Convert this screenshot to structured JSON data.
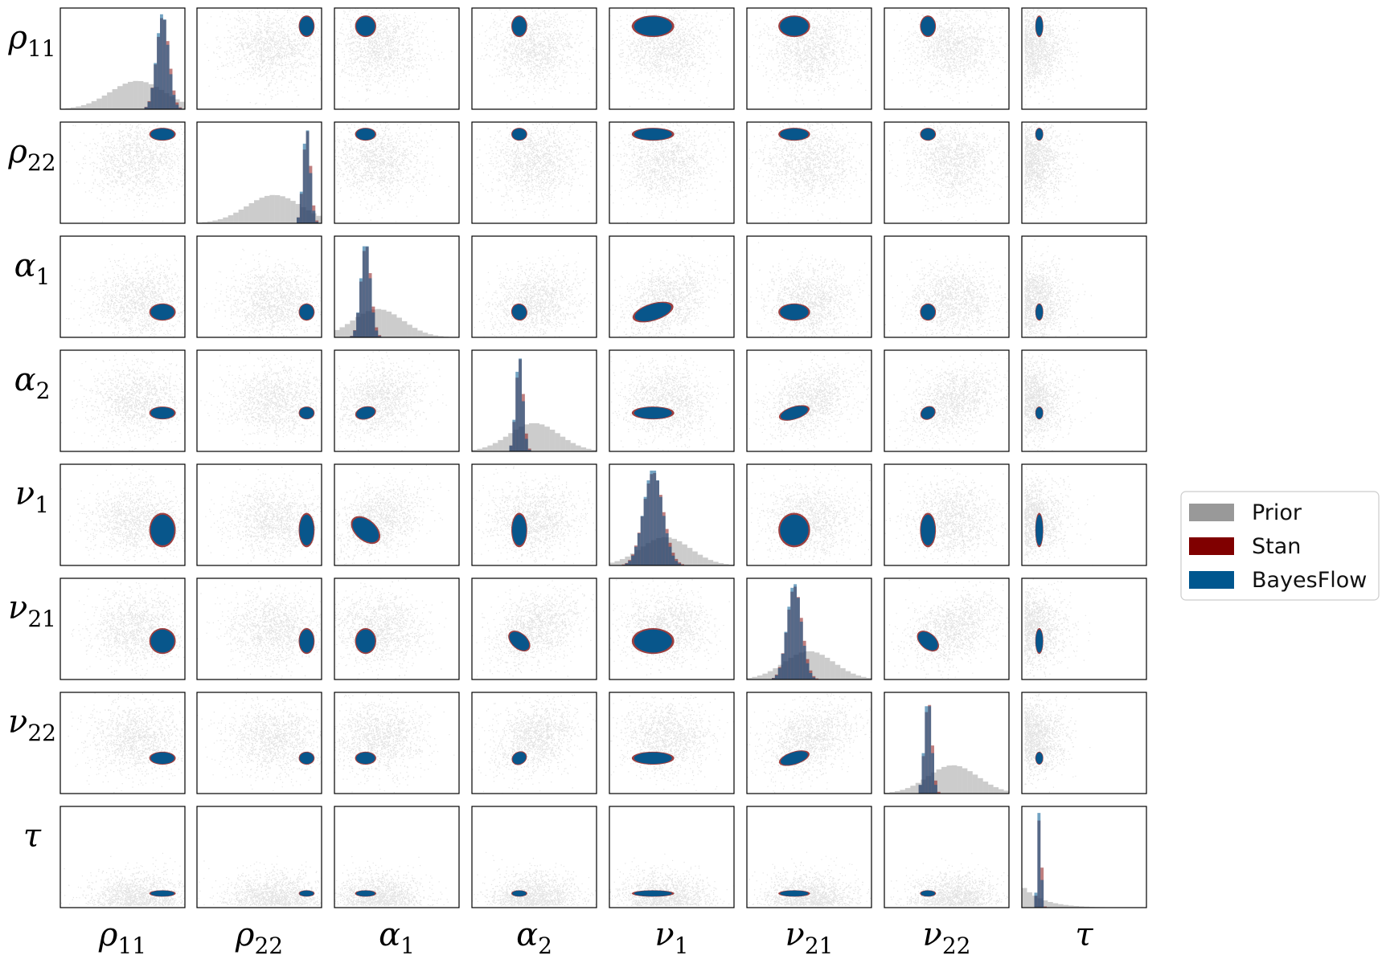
{
  "chart_data": {
    "type": "pairplot",
    "title": "",
    "parameters": [
      {
        "key": "rho11",
        "base": "ρ",
        "sub": "11",
        "center": 0.82,
        "spread": 0.05,
        "prior_center": 0.62,
        "prior_spread": 0.22
      },
      {
        "key": "rho22",
        "base": "ρ",
        "sub": "22",
        "center": 0.88,
        "spread": 0.03,
        "prior_center": 0.62,
        "prior_spread": 0.22
      },
      {
        "key": "alpha1",
        "base": "α",
        "sub": "1",
        "center": 0.25,
        "spread": 0.04,
        "prior_center": 0.35,
        "prior_spread": 0.2
      },
      {
        "key": "alpha2",
        "base": "α",
        "sub": "2",
        "center": 0.38,
        "spread": 0.03,
        "prior_center": 0.5,
        "prior_spread": 0.2
      },
      {
        "key": "nu1",
        "base": "ν",
        "sub": "1",
        "center": 0.35,
        "spread": 0.08,
        "prior_center": 0.45,
        "prior_spread": 0.2
      },
      {
        "key": "nu21",
        "base": "ν",
        "sub": "21",
        "center": 0.38,
        "spread": 0.06,
        "prior_center": 0.5,
        "prior_spread": 0.2
      },
      {
        "key": "nu22",
        "base": "ν",
        "sub": "22",
        "center": 0.35,
        "spread": 0.03,
        "prior_center": 0.55,
        "prior_spread": 0.2
      },
      {
        "key": "tau",
        "base": "τ",
        "sub": "",
        "center": 0.14,
        "spread": 0.015,
        "prior_center": 0.12,
        "prior_spread": 0.25
      }
    ],
    "correlations": {
      "alpha1-nu1": 0.85,
      "alpha2-nu21": 0.85,
      "alpha2-nu22": 0.85,
      "alpha2-alpha1": 0.45,
      "nu22-nu21": 0.85
    },
    "legend": {
      "position": "right",
      "entries": [
        {
          "label": "Prior",
          "color": "#999999"
        },
        {
          "label": "Stan",
          "color": "#800000"
        },
        {
          "label": "BayesFlow",
          "color": "#00578f"
        }
      ]
    },
    "axes": {
      "ticks": "none",
      "xlim": [
        0,
        1
      ],
      "ylim": [
        0,
        1
      ]
    },
    "grid": false,
    "legend_colors": {
      "prior": "#999999",
      "stan": "#800000",
      "bayesflow": "#00578f"
    }
  }
}
